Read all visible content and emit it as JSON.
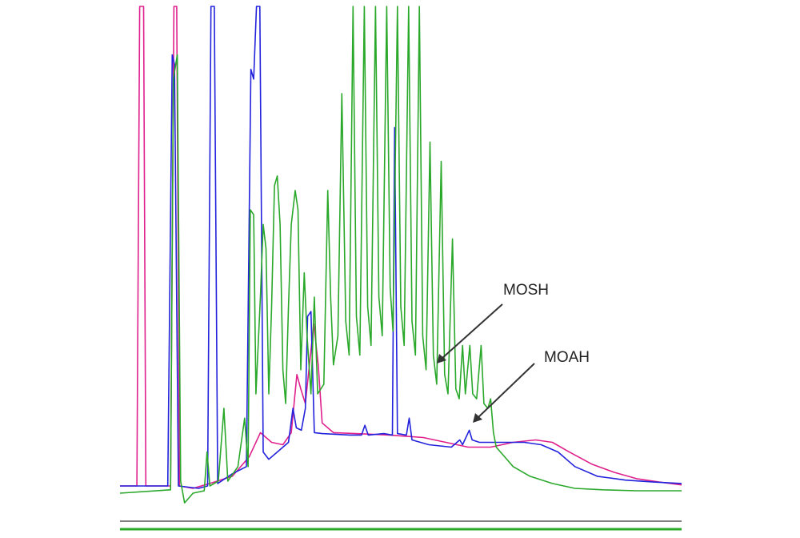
{
  "chart_data": {
    "type": "line",
    "title": "",
    "xlabel": "",
    "ylabel": "",
    "xlim": [
      0,
      100
    ],
    "ylim": [
      0,
      100
    ],
    "grid": false,
    "legend": "none",
    "series": [
      {
        "color": "#e0208c",
        "points": [
          [
            0,
            1.0
          ],
          [
            3,
            1.0
          ],
          [
            3.5,
            100
          ],
          [
            4.2,
            100
          ],
          [
            4.6,
            1.0
          ],
          [
            9,
            1.0
          ],
          [
            9.6,
            100
          ],
          [
            10.1,
            100
          ],
          [
            10.6,
            1.0
          ],
          [
            13,
            0.5
          ],
          [
            16,
            1.5
          ],
          [
            20,
            3.0
          ],
          [
            23,
            7.0
          ],
          [
            25,
            12.0
          ],
          [
            27,
            10.0
          ],
          [
            29,
            9.5
          ],
          [
            30.5,
            12.0
          ],
          [
            31.5,
            24.0
          ],
          [
            32.2,
            21.0
          ],
          [
            33.0,
            18.0
          ],
          [
            34.5,
            34.5
          ],
          [
            35.3,
            26.0
          ],
          [
            36.0,
            14.0
          ],
          [
            38,
            12.0
          ],
          [
            42,
            11.8
          ],
          [
            48,
            11.5
          ],
          [
            54,
            11.0
          ],
          [
            58,
            10.0
          ],
          [
            62,
            9.0
          ],
          [
            66,
            9.0
          ],
          [
            70,
            10.0
          ],
          [
            74,
            10.5
          ],
          [
            77,
            10.0
          ],
          [
            80,
            8.0
          ],
          [
            84,
            5.5
          ],
          [
            88,
            3.8
          ],
          [
            92,
            2.5
          ],
          [
            96,
            1.8
          ],
          [
            100,
            1.2
          ]
        ]
      },
      {
        "color": "#2222dd",
        "points": [
          [
            0,
            1.0
          ],
          [
            4,
            1.0
          ],
          [
            8.5,
            1.0
          ],
          [
            9.3,
            90
          ],
          [
            9.7,
            88
          ],
          [
            10.4,
            1.0
          ],
          [
            14,
            0.5
          ],
          [
            15.6,
            1.0
          ],
          [
            16.2,
            100
          ],
          [
            16.8,
            100
          ],
          [
            17.4,
            1.5
          ],
          [
            20,
            3.5
          ],
          [
            22.5,
            5.0
          ],
          [
            23.3,
            87
          ],
          [
            23.8,
            85
          ],
          [
            24.3,
            100
          ],
          [
            24.9,
            100
          ],
          [
            25.5,
            8.0
          ],
          [
            26.5,
            6.5
          ],
          [
            28,
            8.0
          ],
          [
            30,
            10.0
          ],
          [
            30.8,
            17.0
          ],
          [
            31.4,
            13.0
          ],
          [
            32.3,
            12.5
          ],
          [
            33.0,
            17.0
          ],
          [
            33.4,
            36.0
          ],
          [
            34.0,
            37.0
          ],
          [
            34.6,
            12.0
          ],
          [
            36,
            11.8
          ],
          [
            41,
            11.5
          ],
          [
            43,
            11.5
          ],
          [
            43.6,
            13.5
          ],
          [
            44.2,
            11.5
          ],
          [
            47,
            11.8
          ],
          [
            48.5,
            11.5
          ],
          [
            48.9,
            75
          ],
          [
            49.4,
            11.8
          ],
          [
            51.0,
            11.5
          ],
          [
            51.5,
            15.0
          ],
          [
            52.0,
            10.5
          ],
          [
            55,
            9.5
          ],
          [
            59,
            9.0
          ],
          [
            60.5,
            10.5
          ],
          [
            61.0,
            9.5
          ],
          [
            62.2,
            12.5
          ],
          [
            62.7,
            10.5
          ],
          [
            64,
            10.0
          ],
          [
            68,
            10.0
          ],
          [
            72,
            10.0
          ],
          [
            75,
            9.5
          ],
          [
            78,
            8.0
          ],
          [
            81,
            5.0
          ],
          [
            85,
            3.0
          ],
          [
            90,
            2.2
          ],
          [
            95,
            1.8
          ],
          [
            100,
            1.5
          ]
        ]
      },
      {
        "color": "#2aa82a",
        "points": [
          [
            0,
            -0.5
          ],
          [
            9,
            0.2
          ],
          [
            9.5,
            85
          ],
          [
            10.2,
            90
          ],
          [
            10.8,
            2.0
          ],
          [
            11.5,
            -2.5
          ],
          [
            13,
            -0.5
          ],
          [
            15,
            0
          ],
          [
            15.5,
            8.0
          ],
          [
            16,
            1.0
          ],
          [
            17.5,
            2.0
          ],
          [
            18.5,
            17.0
          ],
          [
            19.2,
            2.0
          ],
          [
            21,
            5.0
          ],
          [
            22.2,
            15.0
          ],
          [
            22.8,
            5.0
          ],
          [
            23.2,
            58.0
          ],
          [
            23.8,
            57.0
          ],
          [
            24.2,
            20.0
          ],
          [
            25.0,
            40.0
          ],
          [
            25.5,
            55.0
          ],
          [
            26.0,
            50.0
          ],
          [
            26.5,
            20.0
          ],
          [
            27.0,
            38.0
          ],
          [
            27.5,
            63.0
          ],
          [
            28.0,
            65.0
          ],
          [
            28.5,
            55.0
          ],
          [
            29.0,
            25.0
          ],
          [
            29.5,
            18.0
          ],
          [
            30.0,
            38.0
          ],
          [
            30.5,
            55.0
          ],
          [
            31.2,
            62.0
          ],
          [
            31.7,
            58.0
          ],
          [
            32.2,
            25.0
          ],
          [
            32.8,
            45.0
          ],
          [
            33.3,
            32.0
          ],
          [
            34.0,
            20.0
          ],
          [
            34.6,
            40.0
          ],
          [
            35.2,
            20.0
          ],
          [
            36.3,
            22.0
          ],
          [
            37.0,
            62.0
          ],
          [
            37.5,
            40.0
          ],
          [
            38.0,
            26.0
          ],
          [
            38.8,
            32.0
          ],
          [
            39.5,
            82.0
          ],
          [
            40.2,
            35.0
          ],
          [
            40.8,
            28.0
          ],
          [
            41.5,
            100
          ],
          [
            42.1,
            36.0
          ],
          [
            42.7,
            28.0
          ],
          [
            43.5,
            100
          ],
          [
            44.1,
            38.0
          ],
          [
            44.7,
            30.0
          ],
          [
            45.5,
            100
          ],
          [
            46.1,
            40.0
          ],
          [
            46.7,
            32.0
          ],
          [
            47.5,
            100
          ],
          [
            48.1,
            42.0
          ],
          [
            48.6,
            33.0
          ],
          [
            49.4,
            100
          ],
          [
            50.0,
            38.0
          ],
          [
            50.6,
            30.0
          ],
          [
            51.4,
            100
          ],
          [
            52.0,
            35.0
          ],
          [
            52.6,
            28.0
          ],
          [
            53.3,
            100
          ],
          [
            53.9,
            32.0
          ],
          [
            54.5,
            25.0
          ],
          [
            55.2,
            72.0
          ],
          [
            55.8,
            28.0
          ],
          [
            56.4,
            22.0
          ],
          [
            57.2,
            68.0
          ],
          [
            57.8,
            24.0
          ],
          [
            58.4,
            20.0
          ],
          [
            59.2,
            52.0
          ],
          [
            59.8,
            21.0
          ],
          [
            60.4,
            19.0
          ],
          [
            61.0,
            30.0
          ],
          [
            61.5,
            20.0
          ],
          [
            62.3,
            30.0
          ],
          [
            62.8,
            20.0
          ],
          [
            63.5,
            19.0
          ],
          [
            64.3,
            30.0
          ],
          [
            64.8,
            18.0
          ],
          [
            65.5,
            17.0
          ],
          [
            66.0,
            19.0
          ],
          [
            66.5,
            12.0
          ],
          [
            67,
            9.0
          ],
          [
            70,
            5.0
          ],
          [
            73,
            3.0
          ],
          [
            77,
            1.5
          ],
          [
            81,
            0.5
          ],
          [
            86,
            0.2
          ],
          [
            92,
            0
          ],
          [
            100,
            0
          ]
        ]
      }
    ],
    "annotations": [
      {
        "text": "MOSH",
        "x": 67.0,
        "y": 41.5
      },
      {
        "text": "MOAH",
        "x": 74.5,
        "y": 29.0
      }
    ]
  }
}
